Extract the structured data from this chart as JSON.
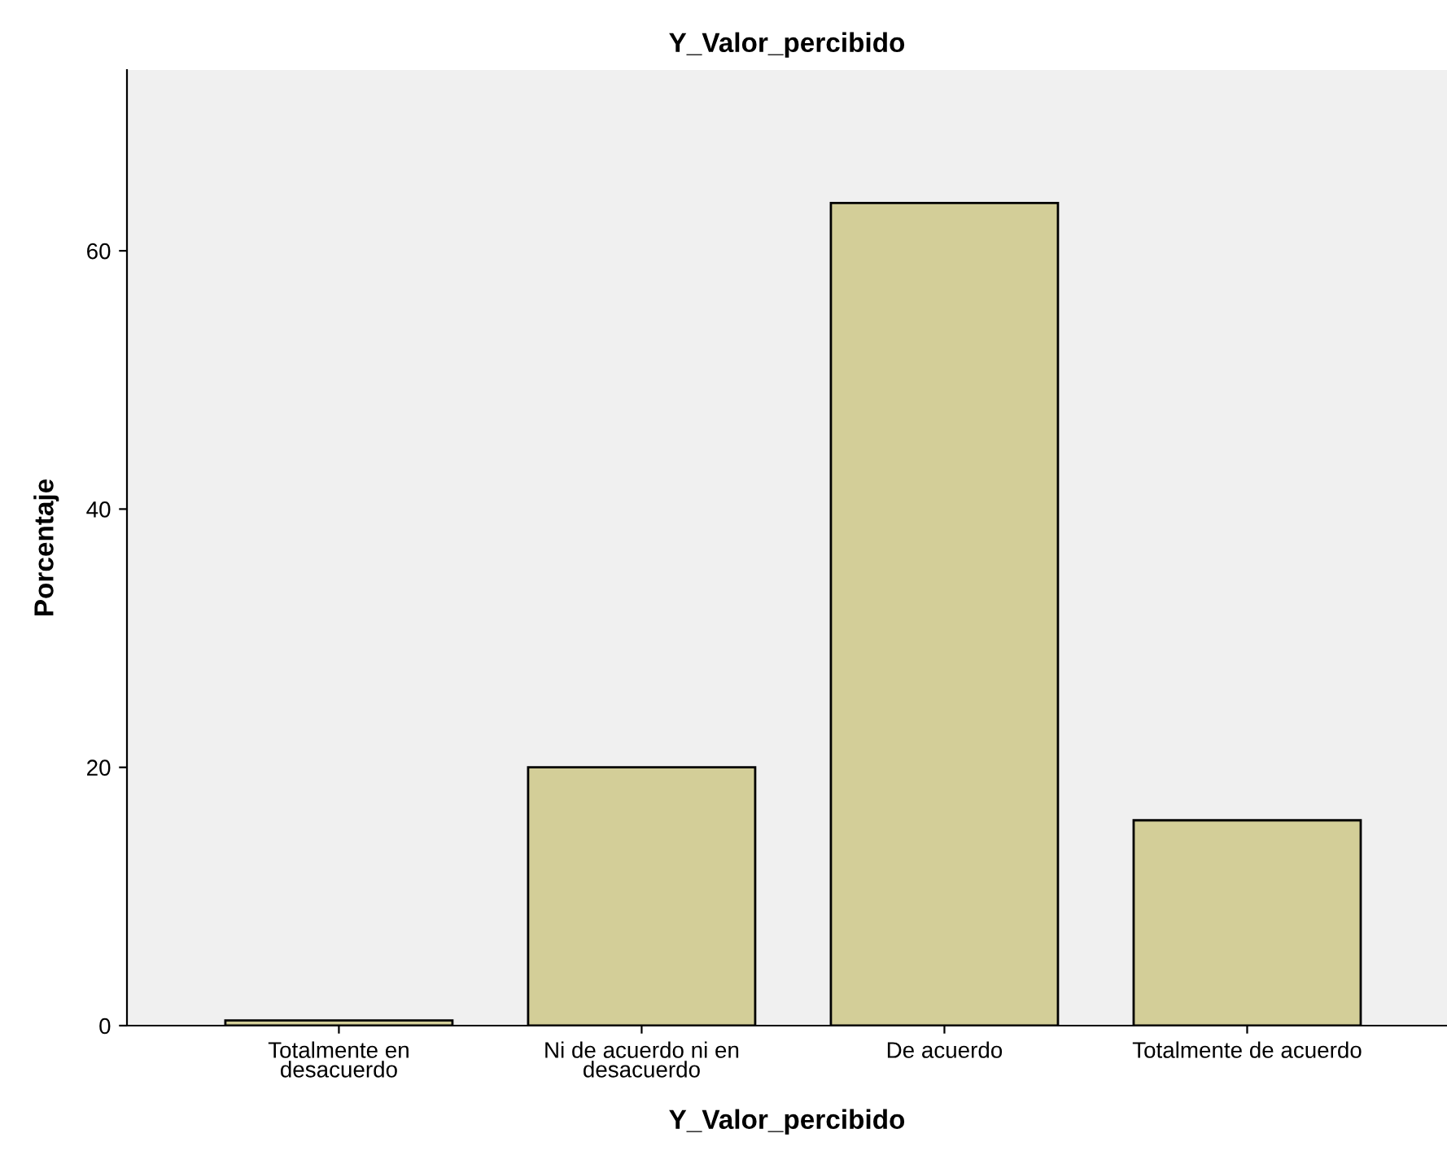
{
  "chart_data": {
    "type": "bar",
    "title": "Y_Valor_percibido",
    "xlabel": "Y_Valor_percibido",
    "ylabel": "Porcentaje",
    "categories": [
      "Totalmente en\ndesacuerdo",
      "Ni de acuerdo ni en\ndesacuerdo",
      "De acuerdo",
      "Totalmente de acuerdo"
    ],
    "values": [
      0.4,
      20,
      63.7,
      15.9
    ],
    "color": "#d3ce98",
    "ylim": [
      0,
      74
    ],
    "yticks": [
      0,
      20,
      40,
      60
    ],
    "grid": false,
    "legend": false
  }
}
